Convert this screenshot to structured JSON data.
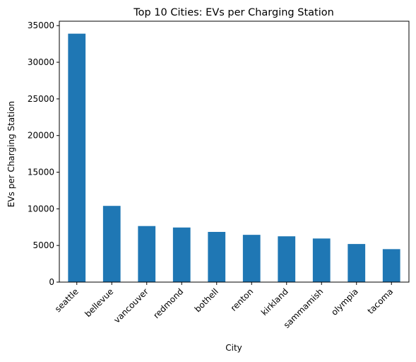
{
  "chart_data": {
    "type": "bar",
    "title": "Top 10 Cities: EVs per Charging Station",
    "xlabel": "City",
    "ylabel": "EVs per Charging Station",
    "categories": [
      "seattle",
      "bellevue",
      "vancouver",
      "redmond",
      "bothell",
      "renton",
      "kirkland",
      "sammamish",
      "olympia",
      "tacoma"
    ],
    "values": [
      33900,
      10400,
      7650,
      7450,
      6850,
      6450,
      6250,
      5950,
      5200,
      4500
    ],
    "ylim": [
      0,
      35600
    ],
    "yticks": [
      0,
      5000,
      10000,
      15000,
      20000,
      25000,
      30000,
      35000
    ],
    "bar_color": "#1f77b4",
    "grid": false,
    "legend": false
  }
}
